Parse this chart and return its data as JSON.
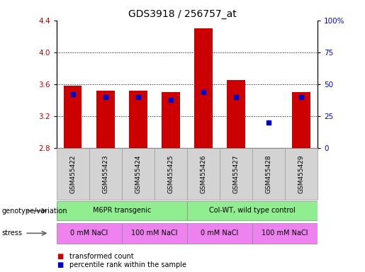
{
  "title": "GDS3918 / 256757_at",
  "samples": [
    "GSM455422",
    "GSM455423",
    "GSM455424",
    "GSM455425",
    "GSM455426",
    "GSM455427",
    "GSM455428",
    "GSM455429"
  ],
  "red_values": [
    3.58,
    3.52,
    3.52,
    3.5,
    4.3,
    3.65,
    2.8,
    3.5
  ],
  "blue_values_pct": [
    42,
    40,
    40,
    38,
    44,
    40,
    20,
    40
  ],
  "ylim_left": [
    2.8,
    4.4
  ],
  "ylim_right": [
    0,
    100
  ],
  "yticks_left": [
    2.8,
    3.2,
    3.6,
    4.0,
    4.4
  ],
  "yticks_right": [
    0,
    25,
    50,
    75,
    100
  ],
  "red_color": "#cc0000",
  "blue_color": "#0000cc",
  "bar_width": 0.55,
  "genotype_label": "genotype/variation",
  "stress_label": "stress",
  "geno_groups": [
    {
      "text": "M6PR transgenic",
      "start": 0,
      "end": 3,
      "color": "#90ee90"
    },
    {
      "text": "Col-WT, wild type control",
      "start": 4,
      "end": 7,
      "color": "#90ee90"
    }
  ],
  "stress_groups": [
    {
      "text": "0 mM NaCl",
      "start": 0,
      "end": 1,
      "color": "#ee82ee"
    },
    {
      "text": "100 mM NaCl",
      "start": 2,
      "end": 3,
      "color": "#ee82ee"
    },
    {
      "text": "0 mM NaCl",
      "start": 4,
      "end": 5,
      "color": "#ee82ee"
    },
    {
      "text": "100 mM NaCl",
      "start": 6,
      "end": 7,
      "color": "#ee82ee"
    }
  ],
  "legend_items": [
    {
      "color": "#cc0000",
      "label": "transformed count"
    },
    {
      "color": "#0000cc",
      "label": "percentile rank within the sample"
    }
  ]
}
